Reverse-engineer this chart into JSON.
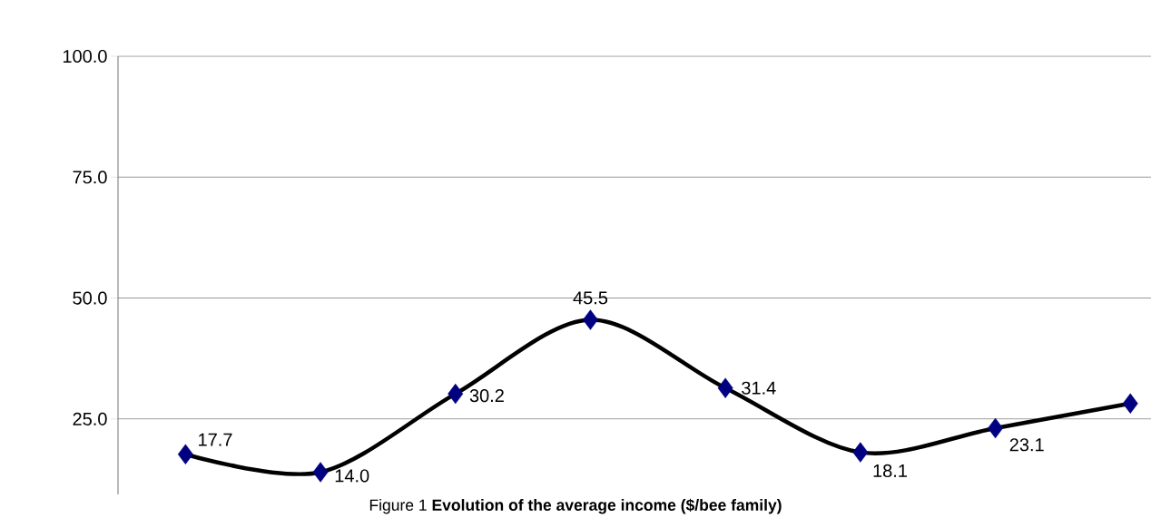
{
  "chart_data": {
    "type": "line",
    "title": "Figure 1 **Evolution of the average income ($/bee family)**",
    "categories": [
      null,
      null,
      null,
      null,
      null,
      null,
      null,
      null
    ],
    "series": [
      {
        "color": "#000080",
        "values": [
          17.7,
          14.0,
          30.2,
          45.5,
          31.4,
          18.1,
          23.1,
          28.2
        ],
        "value_labels": [
          "17.7",
          "14.0",
          "30.2",
          "45.5",
          "31.4",
          "18.1",
          "23.1",
          null
        ]
      }
    ],
    "ylim": [
      9.4,
      100
    ],
    "yticks": [
      {
        "value": 25,
        "label": "25.0"
      },
      {
        "value": 50,
        "label": "50.0"
      },
      {
        "value": 75,
        "label": "75.0"
      },
      {
        "value": 100,
        "label": "100.0"
      }
    ],
    "grid": "y",
    "marker": "diamond",
    "line_style": "solid"
  }
}
